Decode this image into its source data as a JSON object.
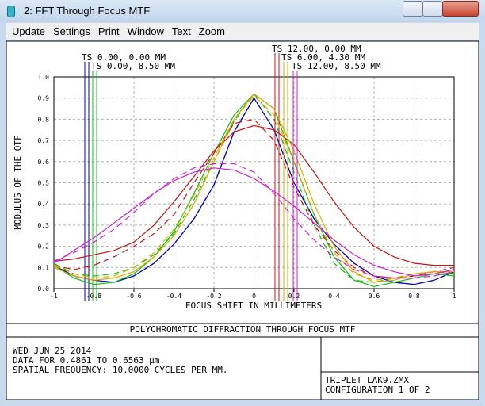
{
  "window": {
    "title": "2: FFT Through Focus MTF",
    "menu": [
      "Update",
      "Settings",
      "Print",
      "Window",
      "Text",
      "Zoom"
    ]
  },
  "chart_data": {
    "type": "line",
    "x_label": "FOCUS SHIFT IN MILLIMETERS",
    "y_label": "MODULUS OF THE OTF",
    "x": [
      -1,
      -0.9,
      -0.8,
      -0.7,
      -0.6,
      -0.5,
      -0.4,
      -0.3,
      -0.2,
      -0.1,
      0,
      0.1,
      0.2,
      0.3,
      0.4,
      0.5,
      0.6,
      0.7,
      0.8,
      0.9,
      1
    ],
    "xlim": [
      -1,
      1
    ],
    "xticks": [
      -1,
      -0.8,
      -0.6,
      -0.4,
      -0.2,
      0,
      0.2,
      0.4,
      0.6,
      0.8,
      1
    ],
    "ylim": [
      0,
      1
    ],
    "yticks": [
      {
        "value": 0,
        "label": "0.0"
      },
      {
        "value": 0.1,
        "label": "0.1"
      },
      {
        "value": 0.2,
        "label": "0.2"
      },
      {
        "value": 0.3,
        "label": "0.3"
      },
      {
        "value": 0.4,
        "label": "0.4"
      },
      {
        "value": 0.5,
        "label": "0.5"
      },
      {
        "value": 0.6,
        "label": "0.6"
      },
      {
        "value": 0.7,
        "label": "0.7"
      },
      {
        "value": 0.8,
        "label": "0.8"
      },
      {
        "value": 0.9,
        "label": "0.9"
      },
      {
        "value": 1,
        "label": "1.0"
      }
    ],
    "grid": true,
    "series": [
      {
        "name": "TS 0.00, 0.00 MM",
        "color": "#0000c8",
        "values": [
          0.11,
          0.06,
          0.04,
          0.03,
          0.06,
          0.12,
          0.21,
          0.33,
          0.49,
          0.74,
          0.9,
          0.75,
          0.5,
          0.33,
          0.21,
          0.12,
          0.06,
          0.03,
          0.02,
          0.04,
          0.08
        ],
        "sagittal": [
          0.11,
          0.06,
          0.04,
          0.03,
          0.06,
          0.12,
          0.21,
          0.33,
          0.49,
          0.74,
          0.9,
          0.75,
          0.5,
          0.33,
          0.21,
          0.12,
          0.06,
          0.03,
          0.02,
          0.04,
          0.08
        ]
      },
      {
        "name": "TS 0.00, 8.50 MM",
        "color": "#10c010",
        "values": [
          0.11,
          0.05,
          0.02,
          0.03,
          0.07,
          0.15,
          0.27,
          0.45,
          0.64,
          0.82,
          0.92,
          0.85,
          0.6,
          0.35,
          0.15,
          0.04,
          0.01,
          0.03,
          0.05,
          0.07,
          0.06
        ],
        "sagittal": [
          0.12,
          0.07,
          0.06,
          0.07,
          0.1,
          0.16,
          0.26,
          0.42,
          0.6,
          0.79,
          0.92,
          0.8,
          0.55,
          0.3,
          0.12,
          0.04,
          0.03,
          0.05,
          0.07,
          0.08,
          0.07
        ]
      },
      {
        "name": "TS 12.00, 0.00 MM",
        "color": "#d01010",
        "values": [
          0.13,
          0.14,
          0.16,
          0.18,
          0.22,
          0.3,
          0.41,
          0.53,
          0.65,
          0.74,
          0.77,
          0.75,
          0.68,
          0.55,
          0.41,
          0.29,
          0.2,
          0.15,
          0.12,
          0.11,
          0.11
        ],
        "sagittal": [
          0.11,
          0.09,
          0.11,
          0.15,
          0.2,
          0.26,
          0.35,
          0.5,
          0.64,
          0.78,
          0.8,
          0.7,
          0.48,
          0.3,
          0.18,
          0.1,
          0.06,
          0.05,
          0.06,
          0.08,
          0.1
        ]
      },
      {
        "name": "TS 6.00, 4.30 MM",
        "color": "#e0a800",
        "values": [
          0.1,
          0.06,
          0.04,
          0.05,
          0.08,
          0.15,
          0.25,
          0.4,
          0.6,
          0.8,
          0.92,
          0.85,
          0.65,
          0.4,
          0.2,
          0.08,
          0.03,
          0.04,
          0.07,
          0.08,
          0.08
        ],
        "sagittal": [
          0.11,
          0.07,
          0.05,
          0.06,
          0.1,
          0.17,
          0.28,
          0.44,
          0.62,
          0.8,
          0.91,
          0.82,
          0.6,
          0.35,
          0.17,
          0.07,
          0.04,
          0.05,
          0.07,
          0.08,
          0.08
        ]
      },
      {
        "name": "TS 12.00, 8.50 MM",
        "color": "#d020d0",
        "values": [
          0.12,
          0.18,
          0.24,
          0.31,
          0.38,
          0.45,
          0.51,
          0.55,
          0.57,
          0.56,
          0.52,
          0.46,
          0.39,
          0.31,
          0.23,
          0.16,
          0.11,
          0.08,
          0.06,
          0.07,
          0.09
        ],
        "sagittal": [
          0.13,
          0.17,
          0.22,
          0.28,
          0.36,
          0.45,
          0.52,
          0.57,
          0.59,
          0.59,
          0.55,
          0.45,
          0.33,
          0.23,
          0.15,
          0.09,
          0.06,
          0.05,
          0.05,
          0.06,
          0.08
        ]
      }
    ]
  },
  "footer": {
    "title": "POLYCHROMATIC DIFFRACTION THROUGH FOCUS MTF",
    "lines": [
      "WED JUN 25 2014",
      "DATA FOR 0.4861 TO 0.6563 µm.",
      "SPATIAL FREQUENCY: 10.0000 CYCLES PER MM."
    ],
    "file": "TRIPLET_LAK9.ZMX",
    "config": "CONFIGURATION 1 OF 2"
  }
}
